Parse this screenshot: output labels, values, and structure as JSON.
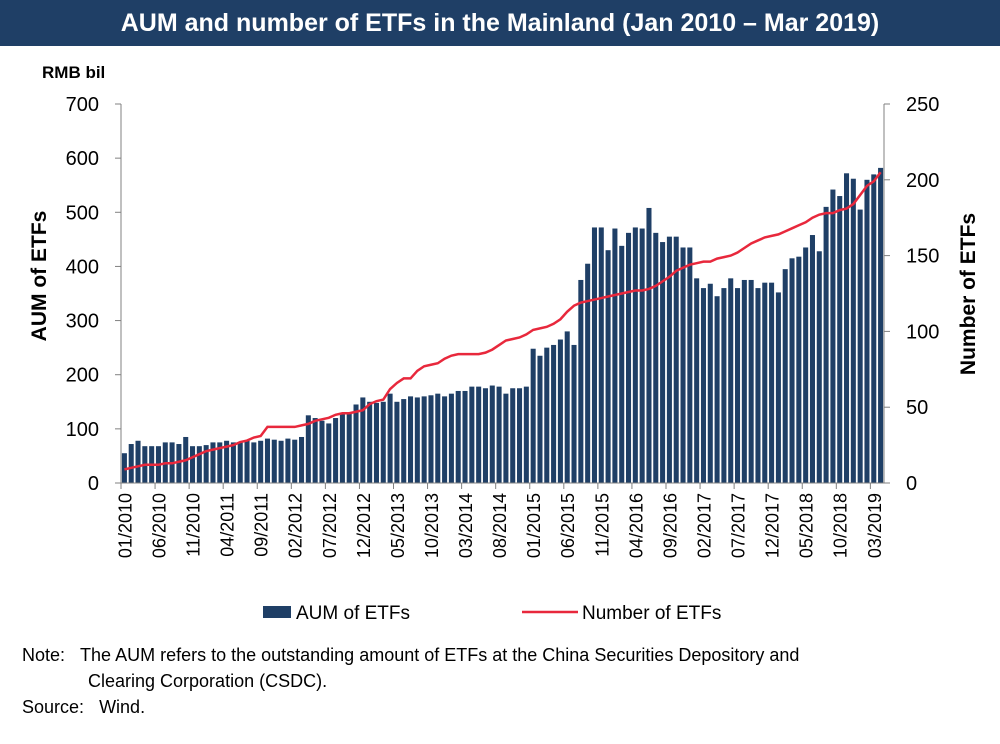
{
  "title": "AUM and number of ETFs in the Mainland (Jan 2010 – Mar 2019)",
  "note": {
    "label": "Note:",
    "line1": "The AUM refers to the outstanding amount of ETFs at the China Securities Depository and",
    "line2": "Clearing Corporation (CSDC)."
  },
  "source": {
    "label": "Source:",
    "text": "Wind."
  },
  "colors": {
    "bar": "#1f3f66",
    "line": "#e8283c",
    "title_bg": "#1f3f66"
  },
  "chart_data": {
    "type": "bar",
    "unit_label": "RMB bil",
    "ylabel_left": "AUM of ETFs",
    "ylabel_right": "Number of ETFs",
    "ylim_left": [
      0,
      700
    ],
    "ylim_right": [
      0,
      250
    ],
    "yticks_left": [
      "0",
      "100",
      "200",
      "300",
      "400",
      "500",
      "600",
      "700"
    ],
    "yticks_right": [
      "0",
      "50",
      "100",
      "150",
      "200",
      "250"
    ],
    "xtick_labels": [
      "01/2010",
      "06/2010",
      "11/2010",
      "04/2011",
      "09/2011",
      "02/2012",
      "07/2012",
      "12/2012",
      "05/2013",
      "10/2013",
      "03/2014",
      "08/2014",
      "01/2015",
      "06/2015",
      "11/2015",
      "04/2016",
      "09/2016",
      "02/2017",
      "07/2017",
      "12/2017",
      "05/2018",
      "10/2018",
      "03/2019"
    ],
    "legend": {
      "position": "bottom"
    },
    "grid": false,
    "series": [
      {
        "name": "AUM of ETFs",
        "type": "bar",
        "axis": "left",
        "values": [
          55,
          72,
          78,
          68,
          68,
          68,
          75,
          75,
          72,
          85,
          68,
          68,
          70,
          75,
          75,
          78,
          75,
          75,
          78,
          75,
          78,
          82,
          80,
          78,
          82,
          80,
          85,
          125,
          120,
          115,
          110,
          120,
          130,
          130,
          145,
          158,
          150,
          148,
          150,
          165,
          150,
          155,
          160,
          158,
          160,
          162,
          165,
          160,
          165,
          170,
          170,
          178,
          178,
          175,
          180,
          178,
          165,
          175,
          175,
          178,
          248,
          235,
          250,
          255,
          265,
          280,
          255,
          375,
          405,
          472,
          472,
          430,
          470,
          438,
          462,
          472,
          470,
          508,
          462,
          445,
          455,
          455,
          435,
          435,
          378,
          360,
          368,
          345,
          360,
          378,
          360,
          375,
          375,
          360,
          370,
          370,
          352,
          395,
          415,
          418,
          435,
          458,
          428,
          510,
          542,
          530,
          572,
          562,
          505,
          560,
          570,
          582
        ]
      },
      {
        "name": "Number of ETFs",
        "type": "line",
        "axis": "right",
        "values": [
          9,
          10,
          11,
          12,
          12,
          12,
          13,
          13,
          14,
          15,
          17,
          19,
          21,
          22,
          23,
          24,
          25,
          27,
          28,
          30,
          31,
          37,
          37,
          37,
          37,
          37,
          38,
          39,
          41,
          42,
          43,
          45,
          46,
          46,
          47,
          48,
          52,
          54,
          55,
          62,
          66,
          69,
          69,
          74,
          77,
          78,
          79,
          82,
          84,
          85,
          85,
          85,
          85,
          86,
          88,
          91,
          94,
          95,
          96,
          98,
          101,
          102,
          103,
          105,
          108,
          113,
          117,
          119,
          120,
          121,
          122,
          123,
          124,
          125,
          126,
          127,
          127,
          128,
          130,
          133,
          136,
          140,
          142,
          144,
          145,
          146,
          146,
          148,
          149,
          150,
          152,
          155,
          158,
          160,
          162,
          163,
          164,
          166,
          168,
          170,
          172,
          175,
          177,
          178,
          178,
          180,
          181,
          184,
          190,
          196,
          199,
          205
        ]
      }
    ]
  }
}
